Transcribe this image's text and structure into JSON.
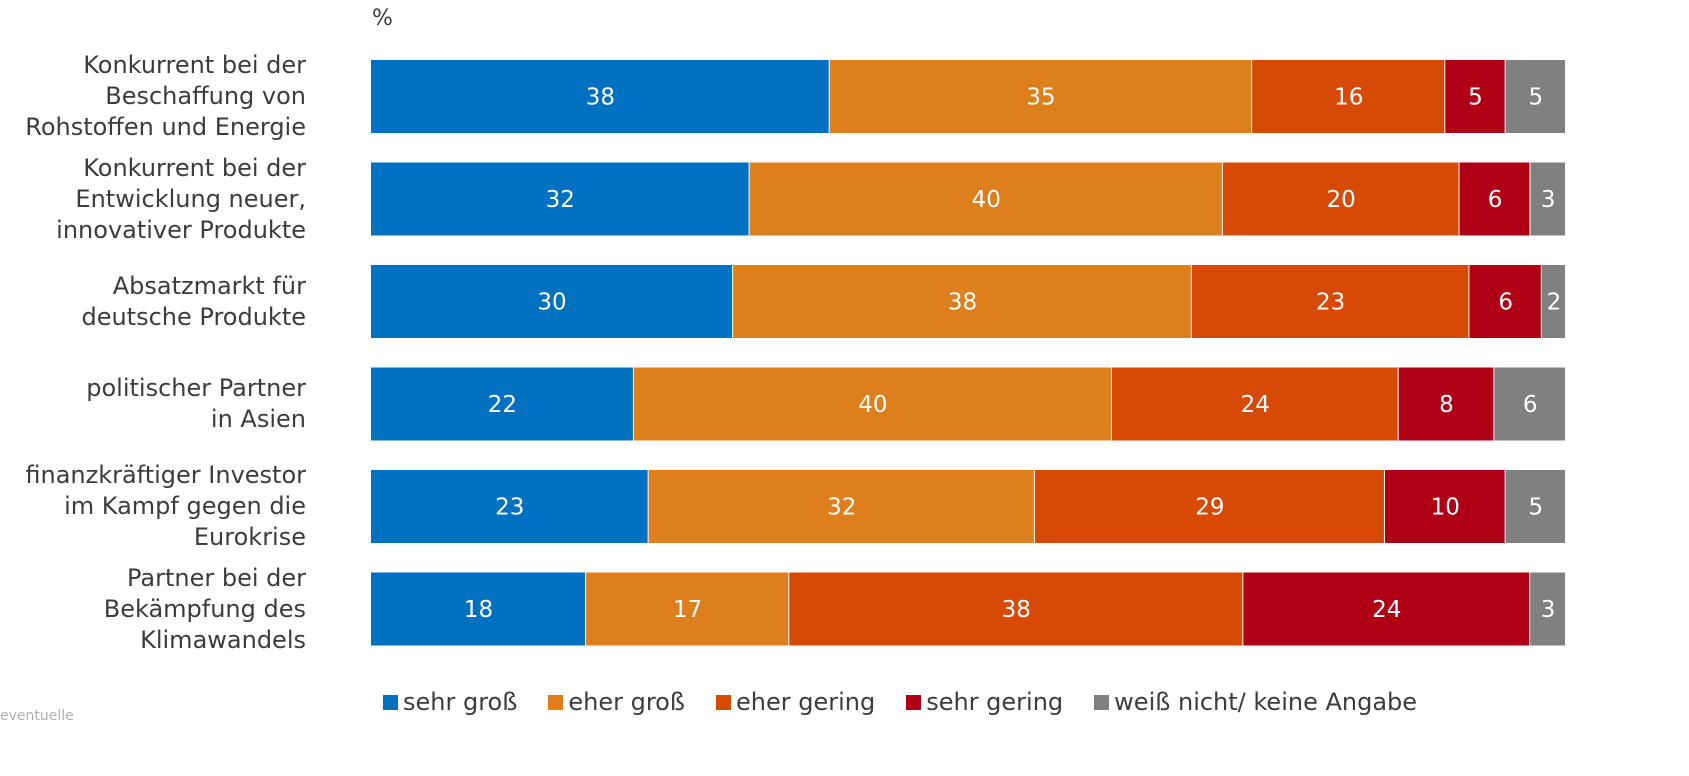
{
  "chart_data": {
    "type": "bar",
    "orientation": "horizontal",
    "stacked": true,
    "unit_label": "%",
    "categories": [
      "Konkurrent bei der\nBeschaffung von\nRohstoffen und Energie",
      "Konkurrent bei der\nEntwicklung neuer,\ninnovativer Produkte",
      "Absatzmarkt für\ndeutsche Produkte",
      "politischer Partner\nin Asien",
      "finanzkräftiger Investor\nim Kampf gegen die\nEurokrise",
      "Partner bei der\nBekämpfung des\nKlimawandels"
    ],
    "series": [
      {
        "name": "sehr groß",
        "color": "#0070c0",
        "values": [
          38,
          32,
          30,
          22,
          23,
          18
        ]
      },
      {
        "name": "eher groß",
        "color": "#dc7f1c",
        "values": [
          35,
          40,
          38,
          40,
          32,
          17
        ]
      },
      {
        "name": "eher gering",
        "color": "#d64a05",
        "values": [
          16,
          20,
          23,
          24,
          29,
          38
        ]
      },
      {
        "name": "sehr gering",
        "color": "#b00015",
        "values": [
          5,
          6,
          6,
          8,
          10,
          24
        ]
      },
      {
        "name": "weiß nicht/ keine Angabe",
        "color": "#808080",
        "values": [
          5,
          3,
          2,
          6,
          5,
          3
        ]
      }
    ],
    "legend_position": "bottom",
    "grid": false
  },
  "footnote": "eventuelle"
}
